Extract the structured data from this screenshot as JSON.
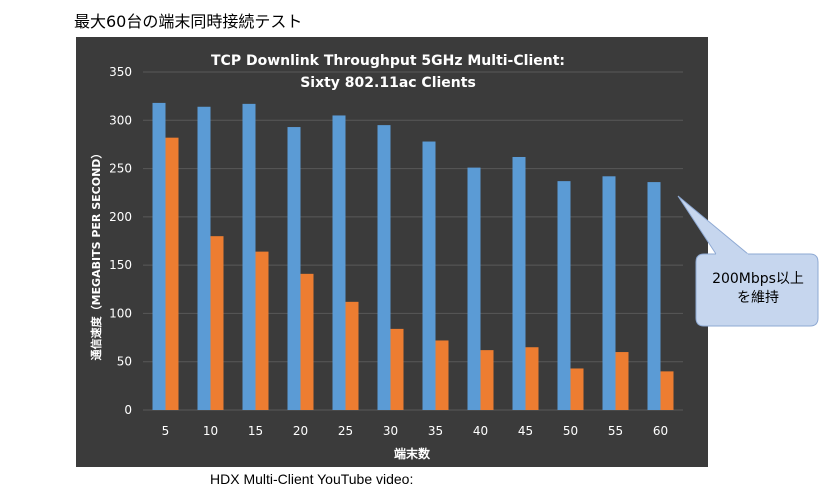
{
  "page": {
    "title": "最大60台の端末同時接続テスト",
    "caption": "HDX Multi-Client YouTube video:"
  },
  "callout": {
    "line1": "200Mbps以上",
    "line2": "を維持"
  },
  "chart_data": {
    "type": "bar",
    "title_line1": "TCP Downlink Throughput 5GHz Multi-Client:",
    "title_line2": "Sixty 802.11ac Clients",
    "xlabel": "端末数",
    "ylabel": "通信速度（MEGABITS PER SECOND）",
    "categories": [
      "5",
      "10",
      "15",
      "20",
      "25",
      "30",
      "35",
      "40",
      "45",
      "50",
      "55",
      "60"
    ],
    "series": [
      {
        "color": "#5b9bd5",
        "values": [
          318,
          314,
          317,
          293,
          305,
          295,
          278,
          251,
          262,
          237,
          242,
          236
        ]
      },
      {
        "color": "#ed7d31",
        "values": [
          282,
          180,
          164,
          141,
          112,
          84,
          72,
          62,
          65,
          43,
          60,
          40
        ]
      }
    ],
    "ylim": [
      0,
      350
    ],
    "yticks": [
      0,
      50,
      100,
      150,
      200,
      250,
      300,
      350
    ],
    "grid": true,
    "background": "#3b3b3b"
  }
}
